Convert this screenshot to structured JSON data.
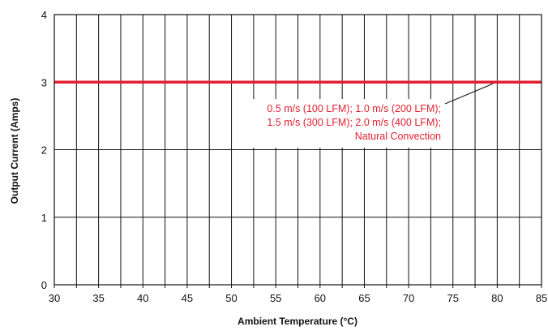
{
  "chart_data": {
    "type": "line",
    "title": "",
    "xlabel": "Ambient Temperature (°C)",
    "ylabel": "Output Current (Amps)",
    "xlim": [
      30,
      85
    ],
    "ylim": [
      0,
      4
    ],
    "x_ticks": [
      30,
      35,
      40,
      45,
      50,
      55,
      60,
      65,
      70,
      75,
      80,
      85
    ],
    "y_ticks": [
      0,
      1,
      2,
      3,
      4
    ],
    "grid": true,
    "series": [
      {
        "x": [
          30,
          85
        ],
        "values": [
          3,
          3
        ],
        "color": "#e2202f"
      }
    ],
    "annotation": {
      "lines": [
        "0.5 m/s (100 LFM); 1.0 m/s (200 LFM);",
        "1.5 m/s (300 LFM); 2.0 m/s (400 LFM);",
        "Natural Convection"
      ],
      "points_to": {
        "x": 79.5,
        "y": 3
      },
      "color": "#e2202f"
    }
  }
}
